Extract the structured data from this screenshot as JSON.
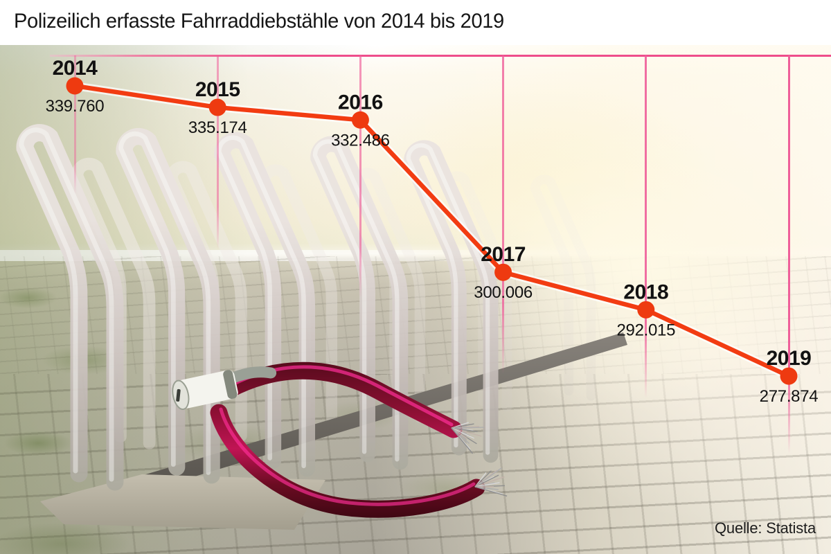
{
  "title": "Polizeilich erfasste Fahrraddiebstähle von 2014 bis 2019",
  "source": "Quelle: Statista",
  "chart_data": {
    "type": "line",
    "title": "Polizeilich erfasste Fahrraddiebstähle von 2014 bis 2019",
    "categories": [
      "2014",
      "2015",
      "2016",
      "2017",
      "2018",
      "2019"
    ],
    "values": [
      339760,
      335174,
      332486,
      300006,
      292015,
      277874
    ],
    "value_labels": [
      "339.760",
      "335.174",
      "332.486",
      "300.006",
      "292.015",
      "277.874"
    ],
    "series_name": "Polizeilich erfasste Fahrraddiebstähle",
    "legend": "none",
    "grid": "vertical-only",
    "line_color": "#f23c12",
    "marker_color": "#ee3a10",
    "gridline_color": "#ef5f9a",
    "label_color": "#121212",
    "source_label": "Quelle: Statista"
  },
  "illustration": {
    "name": "bike-rack-with-cut-cable-lock",
    "alt": "Fahrradständer mit durchtrenntem Kabelschloss auf Kopfsteinpflaster"
  }
}
